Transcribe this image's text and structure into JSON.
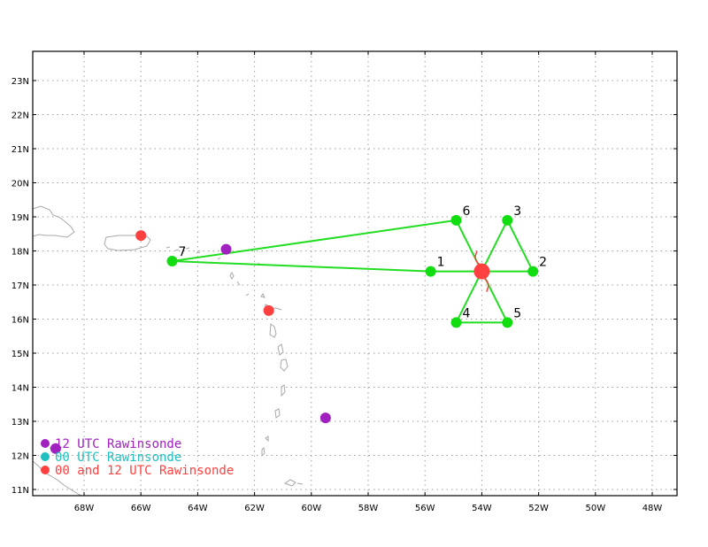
{
  "map": {
    "lon_range": [
      -69.8,
      -47.2
    ],
    "lat_range": [
      10.9,
      24.0
    ],
    "colors": {
      "grid": "#a0a0a0",
      "coast": "#a8a8a8",
      "track": "#22dd22",
      "sample_point": "#11dd11",
      "center": "#ff4040",
      "rawinsonde_12": "#a020c0",
      "rawinsonde_00": "#20c0c0",
      "rawinsonde_both": "#ff4040"
    },
    "lon_ticks": [
      {
        "lon": -68,
        "label": "68W"
      },
      {
        "lon": -66,
        "label": "66W"
      },
      {
        "lon": -64,
        "label": "64W"
      },
      {
        "lon": -62,
        "label": "62W"
      },
      {
        "lon": -60,
        "label": "60W"
      },
      {
        "lon": -58,
        "label": "58W"
      },
      {
        "lon": -56,
        "label": "56W"
      },
      {
        "lon": -54,
        "label": "54W"
      },
      {
        "lon": -52,
        "label": "52W"
      },
      {
        "lon": -50,
        "label": "50W"
      },
      {
        "lon": -48,
        "label": "48W"
      }
    ],
    "lat_ticks": [
      {
        "lat": 11,
        "label": "11N"
      },
      {
        "lat": 12,
        "label": "12N"
      },
      {
        "lat": 13,
        "label": "13N"
      },
      {
        "lat": 14,
        "label": "14N"
      },
      {
        "lat": 15,
        "label": "15N"
      },
      {
        "lat": 16,
        "label": "16N"
      },
      {
        "lat": 17,
        "label": "17N"
      },
      {
        "lat": 18,
        "label": "18N"
      },
      {
        "lat": 19,
        "label": "19N"
      },
      {
        "lat": 20,
        "label": "20N"
      },
      {
        "lat": 21,
        "label": "21N"
      },
      {
        "lat": 22,
        "label": "22N"
      },
      {
        "lat": 23,
        "label": "23N"
      }
    ],
    "center": {
      "lon": -54.0,
      "lat": 17.4
    },
    "sample_points": [
      {
        "label": "1",
        "lon": -55.8,
        "lat": 17.4
      },
      {
        "label": "2",
        "lon": -52.2,
        "lat": 17.4
      },
      {
        "label": "3",
        "lon": -53.1,
        "lat": 18.9
      },
      {
        "label": "4",
        "lon": -54.9,
        "lat": 15.9
      },
      {
        "label": "5",
        "lon": -53.1,
        "lat": 15.9
      },
      {
        "label": "6",
        "lon": -54.9,
        "lat": 18.9
      },
      {
        "label": "7",
        "lon": -64.9,
        "lat": 17.7
      }
    ],
    "track_segments": [
      [
        "7",
        "6"
      ],
      [
        "6",
        "5"
      ],
      [
        "5",
        "4"
      ],
      [
        "4",
        "3"
      ],
      [
        "3",
        "2"
      ],
      [
        "2",
        "1"
      ],
      [
        "1",
        "7"
      ]
    ],
    "rawinsondes": [
      {
        "type": "12",
        "lon": -63.0,
        "lat": 18.05
      },
      {
        "type": "12",
        "lon": -59.5,
        "lat": 13.1
      },
      {
        "type": "12",
        "lon": -69.0,
        "lat": 12.2
      },
      {
        "type": "both",
        "lon": -66.0,
        "lat": 18.45
      },
      {
        "type": "both",
        "lon": -61.5,
        "lat": 16.25
      }
    ]
  },
  "legend": [
    {
      "label": "12 UTC Rawinsonde",
      "color": "#a020c0"
    },
    {
      "label": "00 UTC Rawinsonde",
      "color": "#20c0c0"
    },
    {
      "label": "00 and 12 UTC Rawinsonde",
      "color": "#ff4040"
    }
  ]
}
